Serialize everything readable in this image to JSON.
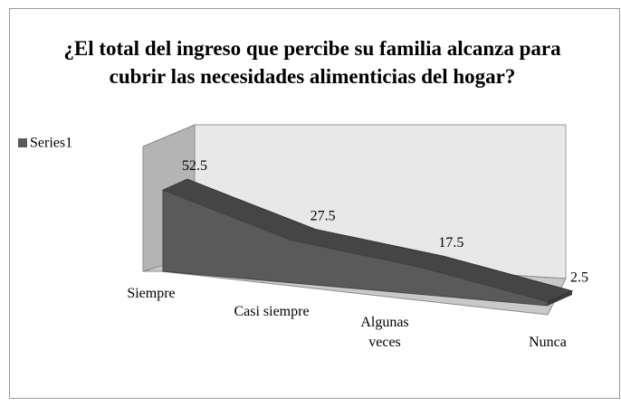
{
  "chart_data": {
    "type": "area3d",
    "title": "¿El total del ingreso que percibe su familia alcanza para cubrir las necesidades alimenticias del hogar?",
    "categories": [
      "Siempre",
      "Casi siempre",
      "Algunas veces",
      "Nunca"
    ],
    "series": [
      {
        "name": "Series1",
        "color": "#5a5a5a",
        "values": [
          52.5,
          27.5,
          17.5,
          2.5
        ]
      }
    ],
    "legend": "left"
  }
}
